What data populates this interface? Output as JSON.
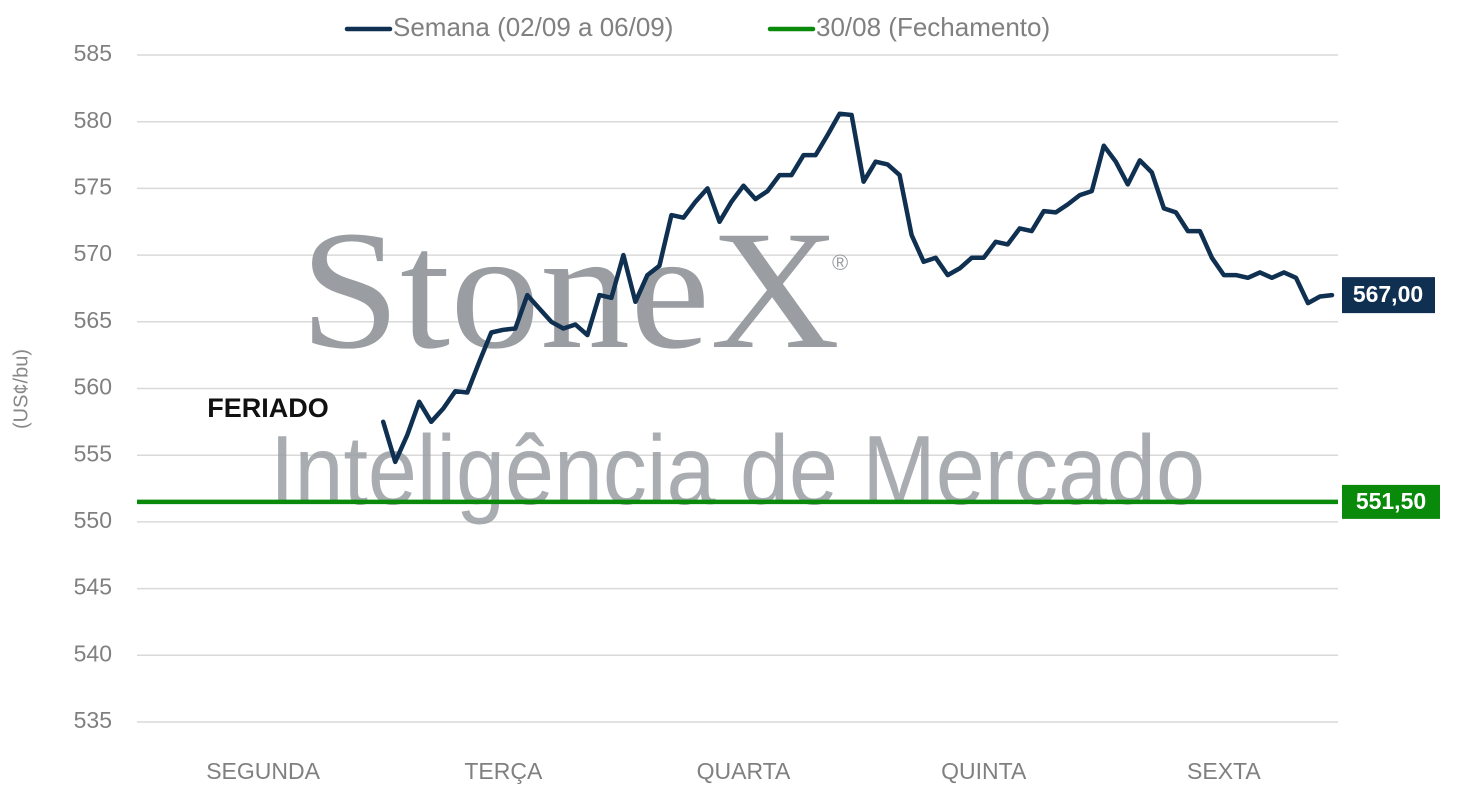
{
  "chart_data": {
    "type": "line",
    "legend": "top",
    "grid": true,
    "ylabel": "(US¢/bu)",
    "annotation": "FERIADO",
    "watermark": {
      "brand": "StoneX",
      "mark": "®",
      "tagline": "Inteligência de Mercado"
    },
    "ylim": [
      535,
      585
    ],
    "yticks": [
      535,
      540,
      545,
      550,
      555,
      560,
      565,
      570,
      575,
      580,
      585
    ],
    "categories": [
      null,
      null,
      null,
      null,
      null,
      null,
      null,
      null,
      null,
      null,
      "SEGUNDA",
      null,
      null,
      null,
      null,
      null,
      null,
      null,
      null,
      null,
      null,
      null,
      null,
      null,
      null,
      null,
      null,
      null,
      null,
      null,
      "TERÇA",
      null,
      null,
      null,
      null,
      null,
      null,
      null,
      null,
      null,
      null,
      null,
      null,
      null,
      null,
      null,
      null,
      null,
      null,
      null,
      "QUARTA",
      null,
      null,
      null,
      null,
      null,
      null,
      null,
      null,
      null,
      null,
      null,
      null,
      null,
      null,
      null,
      null,
      null,
      null,
      null,
      "QUINTA",
      null,
      null,
      null,
      null,
      null,
      null,
      null,
      null,
      null,
      null,
      null,
      null,
      null,
      null,
      null,
      null,
      null,
      null,
      null,
      "SEXTA",
      null,
      null,
      null,
      null,
      null,
      null,
      null,
      null,
      null
    ],
    "series": [
      {
        "name": "Semana (02/09 a 06/09)",
        "color": "#0f3050",
        "values": [
          null,
          null,
          null,
          null,
          null,
          null,
          null,
          null,
          null,
          null,
          null,
          null,
          null,
          null,
          null,
          null,
          null,
          null,
          null,
          null,
          557.5,
          554.5,
          556.5,
          559,
          557.5,
          558.5,
          559.8,
          559.7,
          562,
          564.2,
          564.4,
          564.5,
          567,
          566,
          565,
          564.5,
          564.8,
          564,
          567,
          566.8,
          570,
          566.5,
          568.5,
          569.2,
          573,
          572.8,
          574,
          575,
          572.5,
          574,
          575.2,
          574.2,
          574.8,
          576,
          576,
          577.5,
          577.5,
          579,
          580.6,
          580.5,
          575.5,
          577,
          576.8,
          576,
          571.5,
          569.5,
          569.8,
          568.5,
          569,
          569.8,
          569.8,
          571,
          570.8,
          572,
          571.8,
          573.3,
          573.2,
          573.8,
          574.5,
          574.8,
          578.2,
          577,
          575.3,
          577.1,
          576.2,
          573.5,
          573.2,
          571.8,
          571.8,
          569.8,
          568.5,
          568.5,
          568.3,
          568.7,
          568.3,
          568.7,
          568.3,
          566.4,
          566.9,
          567
        ],
        "value_labels": [
          null,
          null,
          null,
          null,
          null,
          null,
          null,
          null,
          null,
          null,
          null,
          null,
          null,
          null,
          null,
          null,
          null,
          null,
          null,
          null,
          null,
          null,
          null,
          null,
          null,
          null,
          null,
          null,
          null,
          null,
          null,
          null,
          null,
          null,
          null,
          null,
          null,
          null,
          null,
          null,
          null,
          null,
          null,
          null,
          null,
          null,
          null,
          null,
          null,
          null,
          null,
          null,
          null,
          null,
          null,
          null,
          null,
          null,
          null,
          null,
          null,
          null,
          null,
          null,
          null,
          null,
          null,
          null,
          null,
          null,
          null,
          null,
          null,
          null,
          null,
          null,
          null,
          null,
          null,
          null,
          null,
          null,
          null,
          null,
          null,
          null,
          null,
          null,
          null,
          null,
          null,
          null,
          null,
          null,
          null,
          null,
          null,
          null,
          null,
          "567,00"
        ]
      },
      {
        "name": "30/08 (Fechamento)",
        "color": "#0a8a0a",
        "value": 551.5,
        "value_label": "551,50"
      }
    ]
  }
}
